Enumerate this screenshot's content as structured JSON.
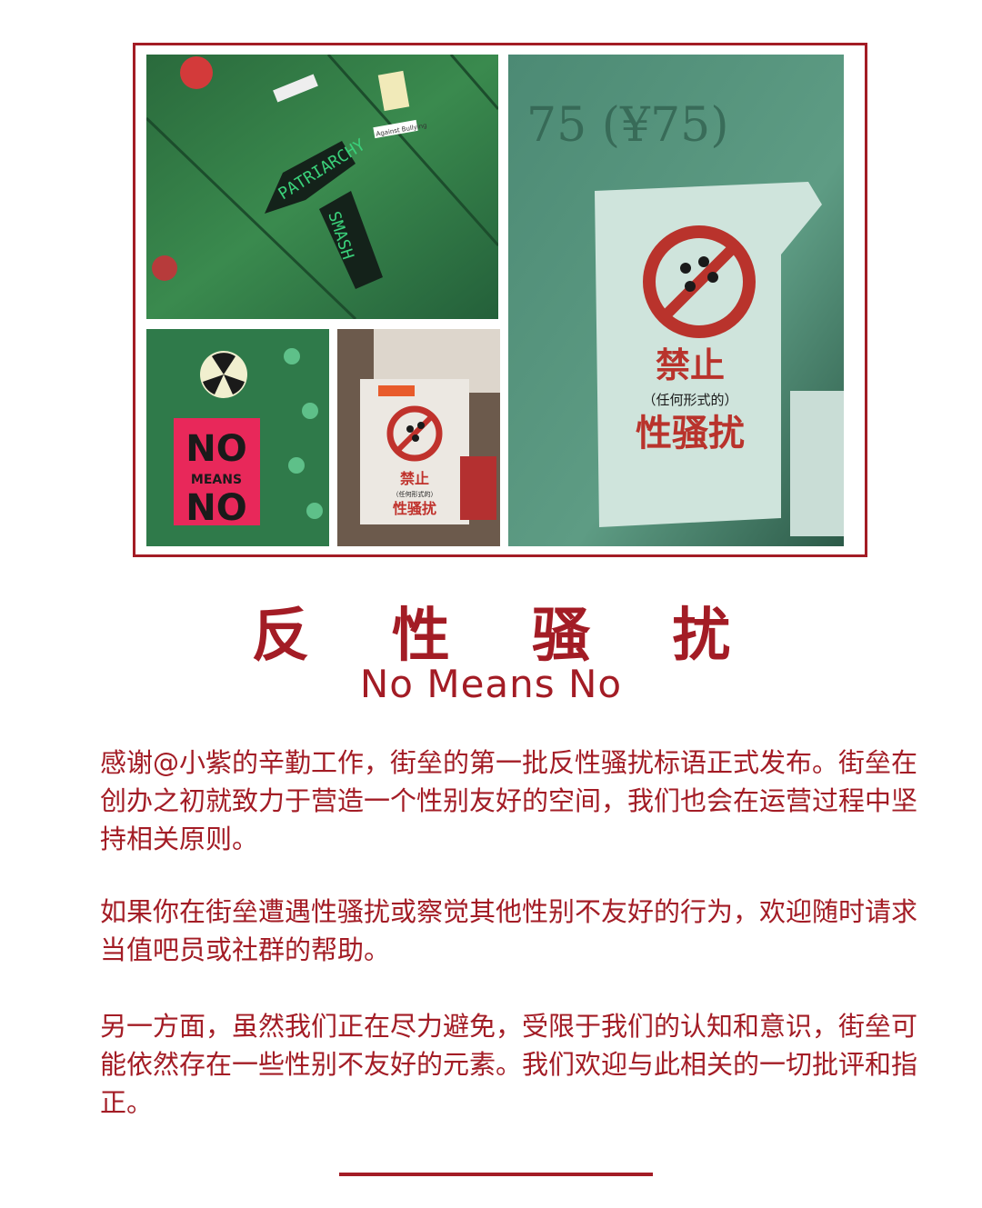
{
  "title": {
    "cn": "反 性 骚 扰",
    "en": "No Means No"
  },
  "photos": {
    "sticker_smash": {
      "line1": "PATRIARCHY",
      "line2": "SMASH",
      "small1": "Against Bullying"
    },
    "poster_large": {
      "line1": "禁止",
      "line2": "（任何形式的）",
      "line3": "性骚扰",
      "wall_text": "75 (¥75)"
    },
    "sticker_no_means_no": {
      "line1": "NO",
      "line2": "MEANS",
      "line3": "NO"
    },
    "poster_small": {
      "line1": "禁止",
      "line2": "（任何形式的）",
      "line3": "性骚扰"
    }
  },
  "paragraphs": [
    "感谢@小紫的辛勤工作，街垒的第一批反性骚扰标语正式发布。街垒在创办之初就致力于营造一个性别友好的空间，我们也会在运营过程中坚持相关原则。",
    "如果你在街垒遭遇性骚扰或察觉其他性别不友好的行为，欢迎随时请求当值吧员或社群的帮助。",
    "另一方面，虽然我们正在尽力避免，受限于我们的认知和意识，街垒可能依然存在一些性别不友好的元素。我们欢迎与此相关的一切批评和指正。"
  ],
  "colors": {
    "accent": "#a31c25",
    "wall_green": "#2f7a45",
    "sticker_pink": "#e8285a"
  }
}
